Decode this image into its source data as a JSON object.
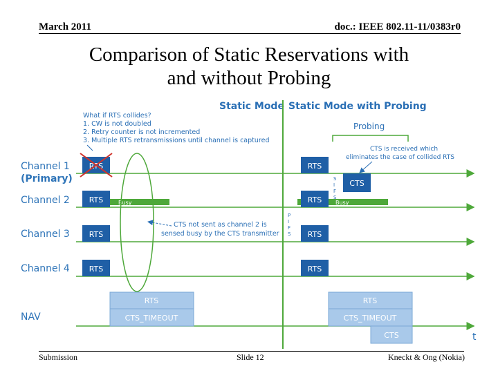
{
  "header": {
    "date": "March 2011",
    "doc": "doc.: IEEE 802.11-11/0383r0"
  },
  "title_line1": "Comparison of Static Reservations with",
  "title_line2": "and without Probing",
  "footer": {
    "left": "Submission",
    "center": "Slide 12",
    "right": "Kneckt & Ong (Nokia)"
  },
  "diagram": {
    "mode_static": "Static Mode",
    "mode_probing": "Static Mode with Probing",
    "collide_note": [
      "What if RTS collides?",
      "1.  CW is not doubled",
      "2.  Retry counter is not incremented",
      "3.  Multiple RTS retransmissions until channel is captured"
    ],
    "probing_label": "Probing",
    "cts_received_note": [
      "CTS is received which",
      "eliminates the case of collided RTS"
    ],
    "cts_not_sent_note": [
      "CTS not sent as channel 2 is",
      "sensed busy by the CTS transmitter"
    ],
    "channels": {
      "ch1": "Channel 1",
      "ch1_sub": "(Primary)",
      "ch2": "Channel 2",
      "ch3": "Channel 3",
      "ch4": "Channel 4",
      "nav": "NAV"
    },
    "rts": "RTS",
    "cts": "CTS",
    "busy": "Busy",
    "cts_timeout": "CTS_TIMEOUT",
    "sifs": [
      "S",
      "I",
      "F",
      "S"
    ],
    "pifs": [
      "P",
      "I",
      "F",
      "S"
    ],
    "time_label": "t",
    "colors": {
      "blue_box": "#1f5fa6",
      "light_box": "#a9c9ea",
      "green": "#4ea83a",
      "heading": "#2a6fb5",
      "label": "#2e74b8"
    }
  }
}
